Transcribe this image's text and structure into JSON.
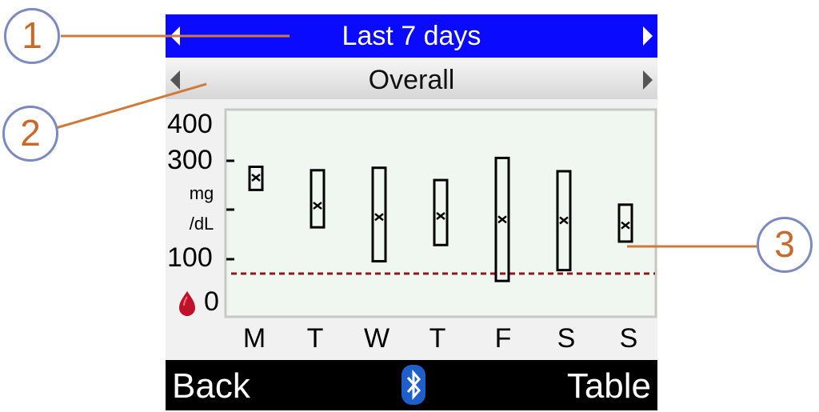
{
  "header": {
    "title": "Last 7 days"
  },
  "subheader": {
    "title": "Overall"
  },
  "chart_data": {
    "type": "box",
    "unit_top": "mg",
    "unit_bottom": "/dL",
    "y_ticks": [
      "400",
      "300",
      "100",
      "0"
    ],
    "ylim": [
      0,
      400
    ],
    "threshold": 70,
    "threshold_color": "#8b1a1a",
    "categories": [
      "M",
      "T",
      "W",
      "T",
      "F",
      "S",
      "S"
    ],
    "series": [
      {
        "min": 240,
        "mean": 265,
        "max": 287
      },
      {
        "min": 164,
        "mean": 208,
        "max": 280
      },
      {
        "min": 95,
        "mean": 185,
        "max": 285
      },
      {
        "min": 128,
        "mean": 187,
        "max": 260
      },
      {
        "min": 55,
        "mean": 180,
        "max": 305
      },
      {
        "min": 77,
        "mean": 178,
        "max": 278
      },
      {
        "min": 135,
        "mean": 168,
        "max": 210
      }
    ]
  },
  "footer": {
    "left_label": "Back",
    "right_label": "Table",
    "center_icon": "bluetooth-icon"
  },
  "callouts": [
    "1",
    "2",
    "3"
  ],
  "colors": {
    "header_bg": "#0a0aff",
    "footer_bg": "#000000",
    "callout_ring": "#7b8ac0",
    "callout_text": "#c96a2a",
    "leader_line": "#d07a3a",
    "drop_icon": "#c0112b"
  }
}
